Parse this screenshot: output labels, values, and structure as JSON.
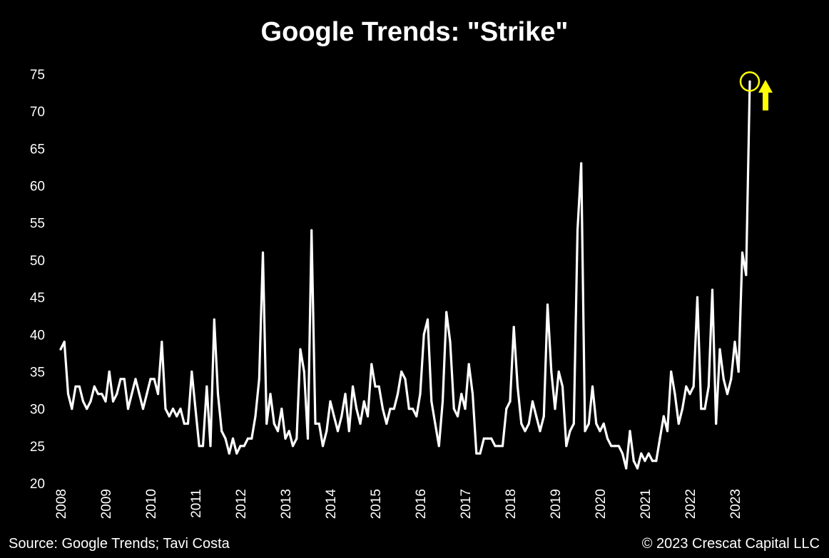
{
  "chart_data": {
    "type": "line",
    "title": "Google Trends: \"Strike\"",
    "xlabel": "",
    "ylabel": "",
    "ylim": [
      20,
      75
    ],
    "yticks": [
      20,
      25,
      30,
      35,
      40,
      45,
      50,
      55,
      60,
      65,
      70,
      75
    ],
    "xlim": [
      2008.0,
      2024.0
    ],
    "xticks": [
      "2008",
      "2009",
      "2010",
      "2011",
      "2012",
      "2013",
      "2014",
      "2015",
      "2016",
      "2017",
      "2018",
      "2019",
      "2020",
      "2021",
      "2022",
      "2023"
    ],
    "grid": false,
    "legend": "none",
    "line_color": "#ffffff",
    "highlight_color": "#ffff00",
    "highlight_point": {
      "x": 2023.333,
      "y": 74
    },
    "annotation": "upward arrow",
    "series": [
      {
        "x": [
          2008.0,
          2008.083,
          2008.167,
          2008.25,
          2008.333,
          2008.417,
          2008.5,
          2008.583,
          2008.667,
          2008.75,
          2008.833,
          2008.917,
          2009.0,
          2009.083,
          2009.167,
          2009.25,
          2009.333,
          2009.417,
          2009.5,
          2009.583,
          2009.667,
          2009.75,
          2009.833,
          2009.917,
          2010.0,
          2010.083,
          2010.167,
          2010.25,
          2010.333,
          2010.417,
          2010.5,
          2010.583,
          2010.667,
          2010.75,
          2010.833,
          2010.917,
          2011.0,
          2011.083,
          2011.167,
          2011.25,
          2011.333,
          2011.417,
          2011.5,
          2011.583,
          2011.667,
          2011.75,
          2011.833,
          2011.917,
          2012.0,
          2012.083,
          2012.167,
          2012.25,
          2012.333,
          2012.417,
          2012.5,
          2012.583,
          2012.667,
          2012.75,
          2012.833,
          2012.917,
          2013.0,
          2013.083,
          2013.167,
          2013.25,
          2013.333,
          2013.417,
          2013.5,
          2013.583,
          2013.667,
          2013.75,
          2013.833,
          2013.917,
          2014.0,
          2014.083,
          2014.167,
          2014.25,
          2014.333,
          2014.417,
          2014.5,
          2014.583,
          2014.667,
          2014.75,
          2014.833,
          2014.917,
          2015.0,
          2015.083,
          2015.167,
          2015.25,
          2015.333,
          2015.417,
          2015.5,
          2015.583,
          2015.667,
          2015.75,
          2015.833,
          2015.917,
          2016.0,
          2016.083,
          2016.167,
          2016.25,
          2016.333,
          2016.417,
          2016.5,
          2016.583,
          2016.667,
          2016.75,
          2016.833,
          2016.917,
          2017.0,
          2017.083,
          2017.167,
          2017.25,
          2017.333,
          2017.417,
          2017.5,
          2017.583,
          2017.667,
          2017.75,
          2017.833,
          2017.917,
          2018.0,
          2018.083,
          2018.167,
          2018.25,
          2018.333,
          2018.417,
          2018.5,
          2018.583,
          2018.667,
          2018.75,
          2018.833,
          2018.917,
          2019.0,
          2019.083,
          2019.167,
          2019.25,
          2019.333,
          2019.417,
          2019.5,
          2019.583,
          2019.667,
          2019.75,
          2019.833,
          2019.917,
          2020.0,
          2020.083,
          2020.167,
          2020.25,
          2020.333,
          2020.417,
          2020.5,
          2020.583,
          2020.667,
          2020.75,
          2020.833,
          2020.917,
          2021.0,
          2021.083,
          2021.167,
          2021.25,
          2021.333,
          2021.417,
          2021.5,
          2021.583,
          2021.667,
          2021.75,
          2021.833,
          2021.917,
          2022.0,
          2022.083,
          2022.167,
          2022.25,
          2022.333,
          2022.417,
          2022.5,
          2022.583,
          2022.667,
          2022.75,
          2022.833,
          2022.917,
          2023.0,
          2023.083,
          2023.167,
          2023.25,
          2023.333
        ],
        "values": [
          38,
          39,
          32,
          30,
          33,
          33,
          31,
          30,
          31,
          33,
          32,
          32,
          31,
          35,
          31,
          32,
          34,
          34,
          30,
          32,
          34,
          32,
          30,
          32,
          34,
          34,
          32,
          39,
          30,
          29,
          30,
          29,
          30,
          28,
          28,
          35,
          30,
          25,
          25,
          33,
          25,
          42,
          32,
          27,
          26,
          24,
          26,
          24,
          25,
          25,
          26,
          26,
          29,
          34,
          51,
          28,
          32,
          28,
          27,
          30,
          26,
          27,
          25,
          26,
          38,
          35,
          26,
          54,
          28,
          28,
          25,
          27,
          31,
          29,
          27,
          29,
          32,
          27,
          33,
          30,
          28,
          31,
          29,
          36,
          33,
          33,
          30,
          28,
          30,
          30,
          32,
          35,
          34,
          30,
          30,
          29,
          32,
          40,
          42,
          31,
          28,
          25,
          31,
          43,
          39,
          30,
          29,
          32,
          30,
          36,
          32,
          24,
          24,
          26,
          26,
          26,
          25,
          25,
          25,
          30,
          31,
          41,
          33,
          28,
          27,
          28,
          31,
          29,
          27,
          29,
          44,
          35,
          30,
          35,
          33,
          25,
          27,
          28,
          54,
          63,
          27,
          28,
          33,
          28,
          27,
          28,
          26,
          25,
          25,
          25,
          24,
          22,
          27,
          23,
          22,
          24,
          23,
          24,
          23,
          23,
          26,
          29,
          27,
          35,
          32,
          28,
          30,
          33,
          32,
          33,
          45,
          30,
          30,
          33,
          46,
          28,
          38,
          34,
          32,
          34,
          39,
          35,
          51,
          48,
          74
        ]
      }
    ],
    "source": "Source: Google Trends; Tavi Costa",
    "copyright": "© 2023 Crescat Capital LLC"
  }
}
